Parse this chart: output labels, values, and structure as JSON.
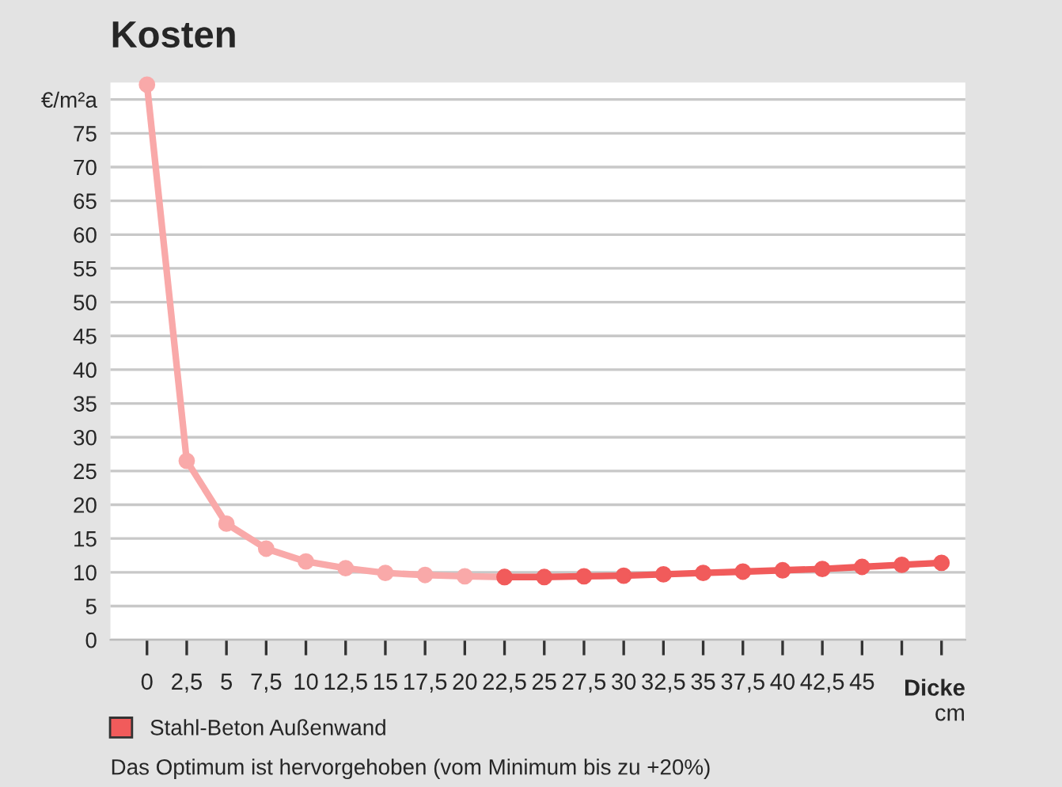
{
  "chart_data": {
    "type": "line",
    "title": "Kosten",
    "xlabel": "Dicke\ncm",
    "series": [
      {
        "color": "#f9a9a9",
        "x": [
          0,
          2.5,
          5,
          7.5,
          10,
          12.5,
          15,
          17.5,
          20,
          22.5
        ],
        "values": [
          82.2,
          26.5,
          17.2,
          13.5,
          11.6,
          10.6,
          9.9,
          9.6,
          9.4,
          9.3
        ]
      },
      {
        "name": "Stahl-Beton Außenwand",
        "color": "#f15b5b",
        "x": [
          22.5,
          25,
          27.5,
          30,
          32.5,
          35,
          37.5,
          40,
          42.5,
          45,
          47.5,
          50
        ],
        "values": [
          9.3,
          9.3,
          9.4,
          9.5,
          9.7,
          9.9,
          10.1,
          10.3,
          10.5,
          10.8,
          11.1,
          11.4
        ]
      }
    ],
    "xlim": [
      -2.3,
      51.5
    ],
    "ylim": [
      0,
      82.5
    ],
    "xticks": [
      0,
      {
        "value": 2.5,
        "label": "2,5"
      },
      5,
      {
        "value": 7.5,
        "label": "7,5"
      },
      10,
      {
        "value": 12.5,
        "label": "12,5"
      },
      15,
      {
        "value": 17.5,
        "label": "17,5"
      },
      20,
      {
        "value": 22.5,
        "label": "22,5"
      },
      25,
      {
        "value": 27.5,
        "label": "27,5"
      },
      30,
      {
        "value": 32.5,
        "label": "32,5"
      },
      35,
      {
        "value": 37.5,
        "label": "37,5"
      },
      40,
      {
        "value": 42.5,
        "label": "42,5"
      },
      45,
      {
        "value": 47.5,
        "label": null
      },
      {
        "value": 50,
        "label": null
      }
    ],
    "yticks": [
      0,
      5,
      10,
      15,
      20,
      25,
      30,
      35,
      40,
      45,
      50,
      55,
      60,
      65,
      70,
      75,
      {
        "value": 80,
        "label": "€/m²a"
      }
    ],
    "grid": "y",
    "legend": "bottom",
    "marker": "circle",
    "line_style": "solid",
    "annotations": [
      "Das Optimum ist hervorgehoben (vom Minimum bis zu +20%)"
    ]
  }
}
